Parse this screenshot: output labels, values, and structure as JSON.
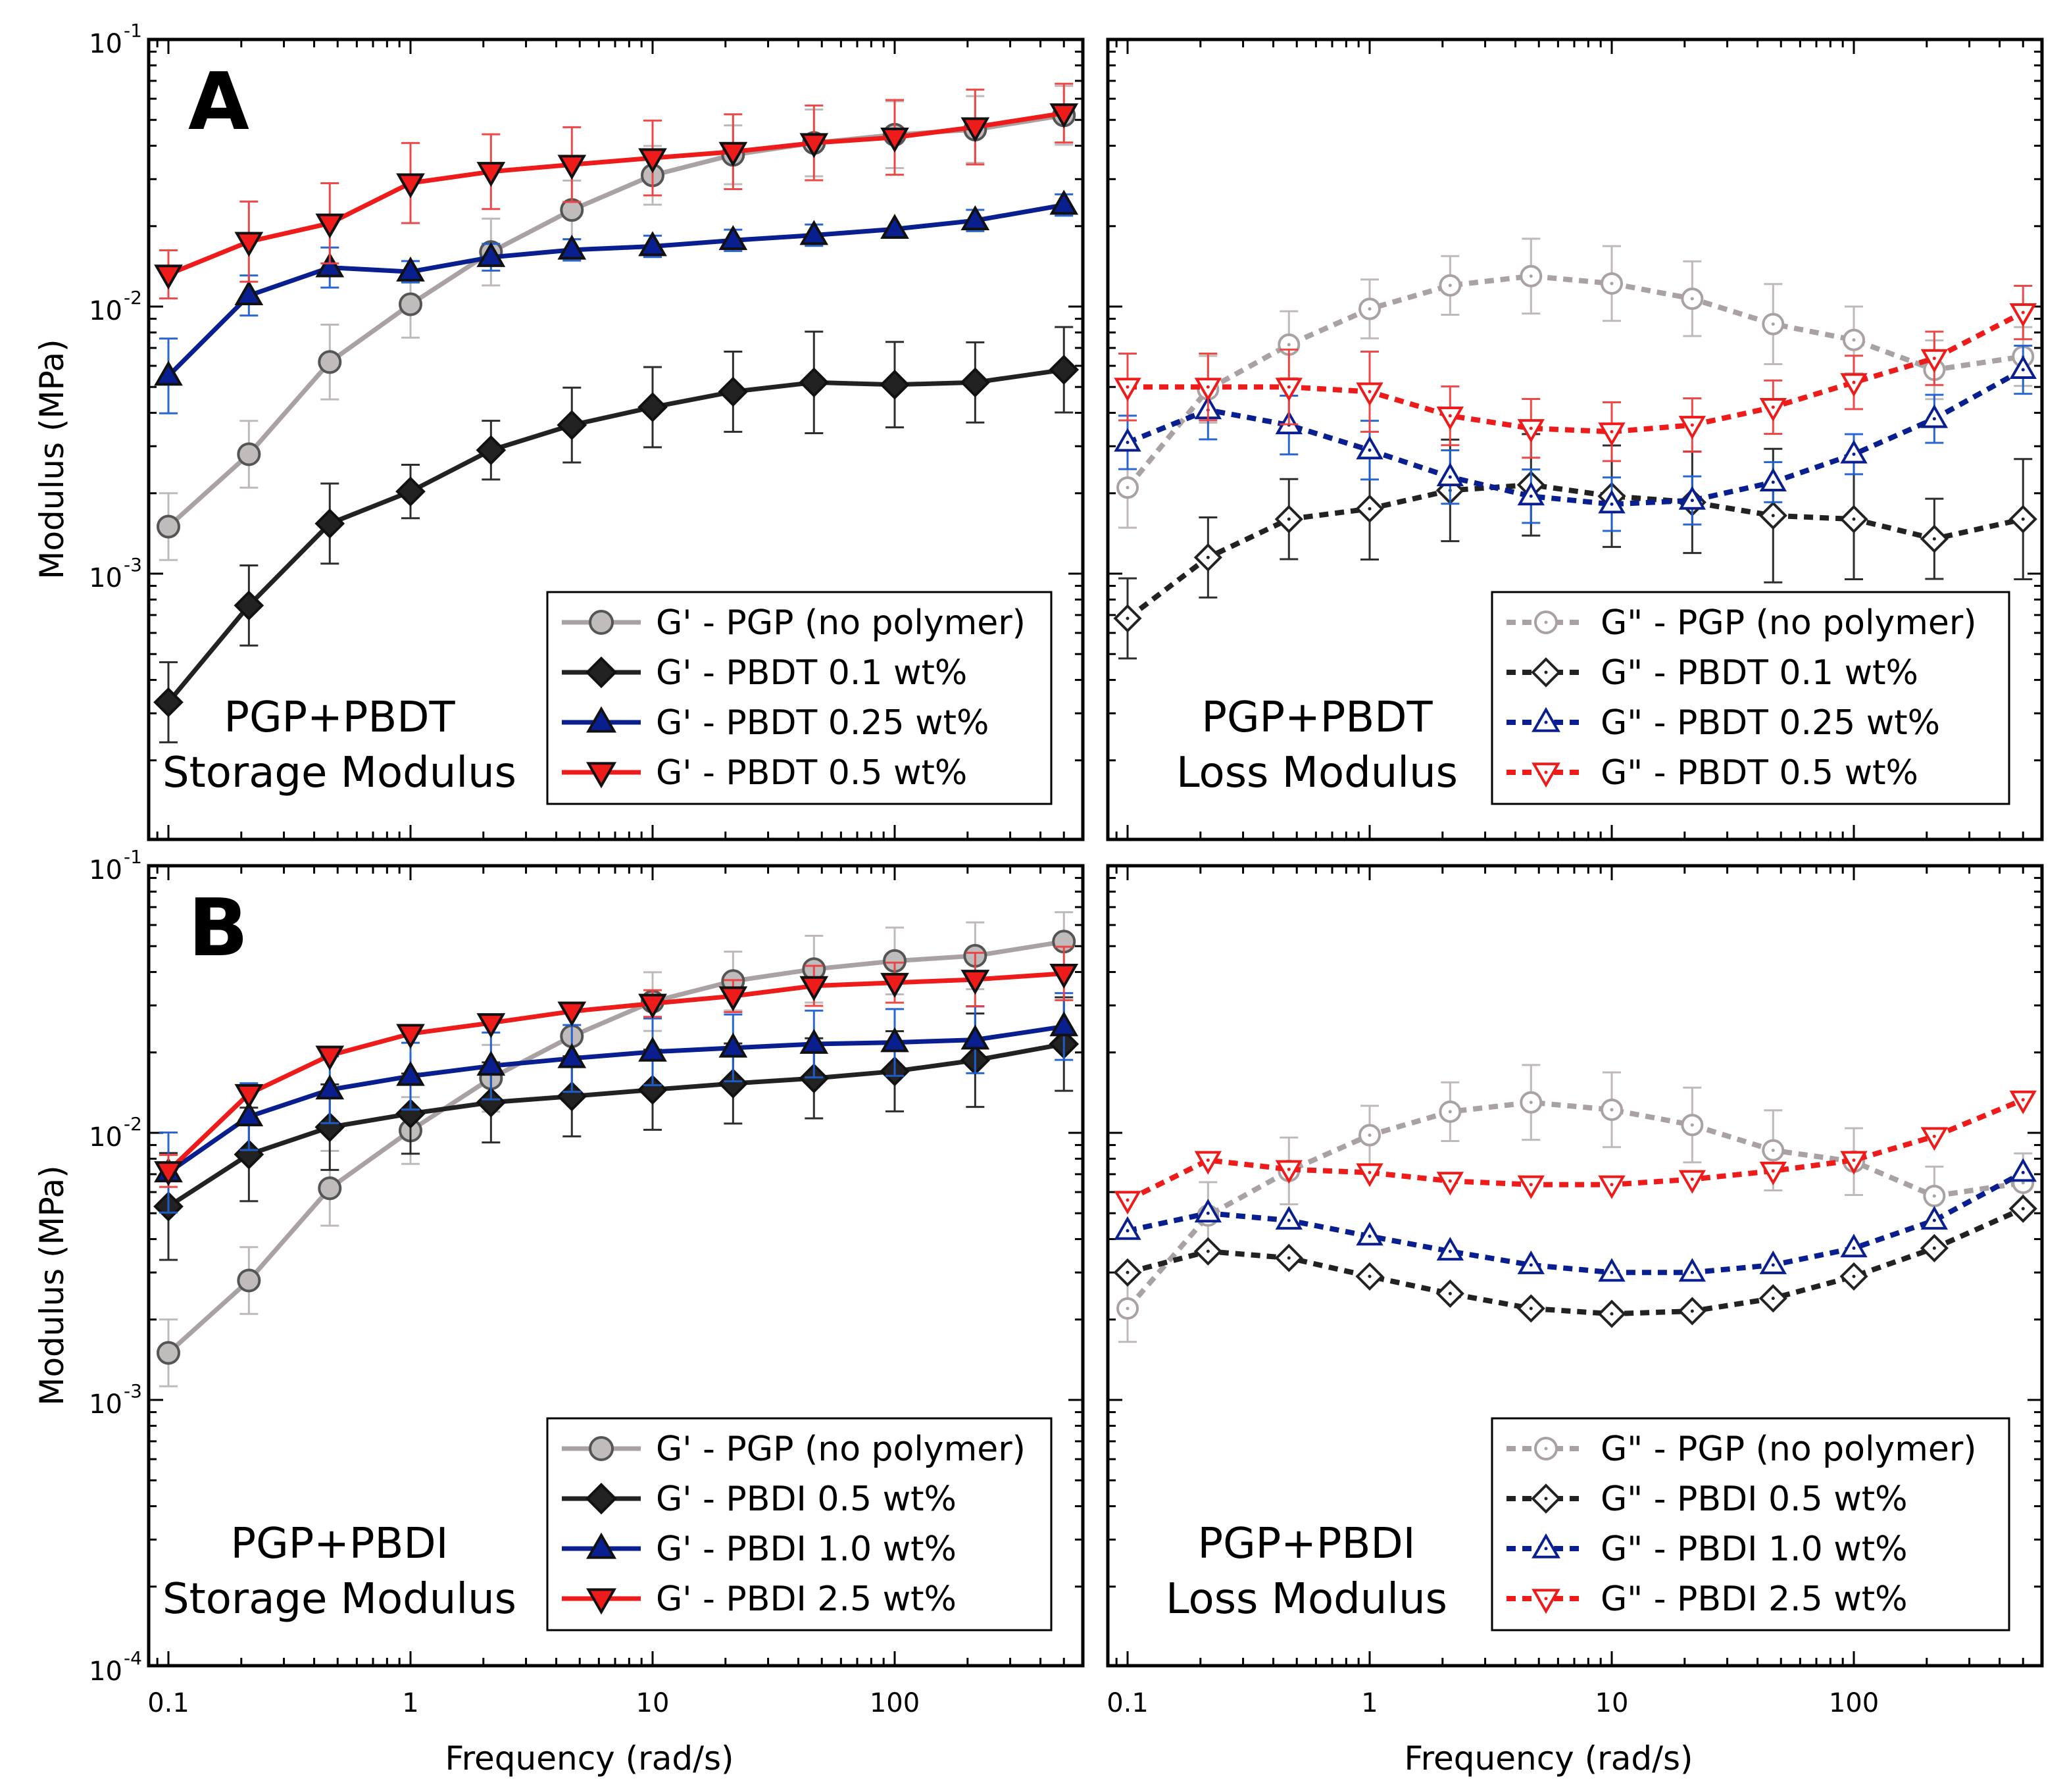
{
  "colors": {
    "pgp": "#aaa2a2",
    "pgp_fill": "#c0bcbc",
    "pgp_edge": "#555555",
    "low": "#222222",
    "mid": "#0a1f8f",
    "high": "#ee1b1b",
    "mid_err": "#1f5fd0",
    "high_err": "#ee4040",
    "frame": "#000000"
  },
  "figure": {
    "xlabel": "Frequency (rad/s)",
    "ylabel": "Modulus (MPa)",
    "x_ticks": [
      {
        "v": 0.1,
        "label": "0.1"
      },
      {
        "v": 1,
        "label": "1"
      },
      {
        "v": 10,
        "label": "10"
      },
      {
        "v": 100,
        "label": "100"
      }
    ],
    "y_decades_A": [
      {
        "v": 0.1,
        "base": "10",
        "exp": "-1"
      },
      {
        "v": 0.01,
        "base": "10",
        "exp": "-2"
      },
      {
        "v": 0.001,
        "base": "10",
        "exp": "-3"
      }
    ],
    "y_decades_B": [
      {
        "v": 0.1,
        "base": "10",
        "exp": "-1"
      },
      {
        "v": 0.01,
        "base": "10",
        "exp": "-2"
      },
      {
        "v": 0.001,
        "base": "10",
        "exp": "-3"
      },
      {
        "v": 0.0001,
        "base": "10",
        "exp": "-4"
      }
    ]
  },
  "chart_data": [
    {
      "id": "A-storage",
      "type": "line",
      "panel_label": "A",
      "title_lines": [
        "PGP+PBDT",
        "Storage Modulus"
      ],
      "xscale": "log",
      "yscale": "log",
      "xlim": [
        0.075,
        650
      ],
      "ylim": [
        0.0001,
        0.1
      ],
      "x": [
        0.1,
        0.215,
        0.464,
        1,
        2.15,
        4.64,
        10,
        21.5,
        46.4,
        100,
        215,
        500
      ],
      "series": [
        {
          "name": "G' - PGP (no polymer)",
          "color_key": "pgp",
          "marker": "circle",
          "dash": false,
          "filled": true,
          "values": [
            0.0015,
            0.0028,
            0.0062,
            0.0102,
            0.016,
            0.023,
            0.031,
            0.037,
            0.041,
            0.044,
            0.046,
            0.052
          ],
          "err": [
            0.25,
            0.25,
            0.28,
            0.25,
            0.25,
            0.22,
            0.22,
            0.22,
            0.25,
            0.25,
            0.25,
            0.22
          ]
        },
        {
          "name": "G' - PBDT 0.1 wt%",
          "color_key": "low",
          "marker": "diamond",
          "dash": false,
          "filled": true,
          "values": [
            0.00033,
            0.00076,
            0.00154,
            0.00203,
            0.0029,
            0.0036,
            0.0042,
            0.0048,
            0.0052,
            0.0051,
            0.0052,
            0.0058
          ],
          "err": [
            0.3,
            0.3,
            0.3,
            0.2,
            0.22,
            0.28,
            0.3,
            0.3,
            0.38,
            0.32,
            0.3,
            0.32
          ]
        },
        {
          "name": "G' - PBDT 0.25 wt%",
          "color_key": "mid",
          "marker": "triangle-up",
          "dash": false,
          "filled": true,
          "values": [
            0.0055,
            0.011,
            0.014,
            0.0135,
            0.0153,
            0.0163,
            0.0168,
            0.0177,
            0.0185,
            0.0195,
            0.021,
            0.024
          ],
          "err": [
            0.28,
            0.15,
            0.15,
            0.08,
            0.1,
            0.08,
            0.08,
            0.08,
            0.08,
            0.06,
            0.08,
            0.08
          ]
        },
        {
          "name": "G' - PBDT 0.5 wt%",
          "color_key": "high",
          "marker": "triangle-down",
          "dash": false,
          "filled": true,
          "values": [
            0.0132,
            0.0175,
            0.0205,
            0.029,
            0.032,
            0.034,
            0.036,
            0.038,
            0.041,
            0.043,
            0.047,
            0.053
          ],
          "err": [
            0.18,
            0.3,
            0.3,
            0.3,
            0.28,
            0.28,
            0.28,
            0.28,
            0.28,
            0.28,
            0.28,
            0.22
          ]
        }
      ],
      "legend_position": "bottom-right"
    },
    {
      "id": "A-loss",
      "type": "line",
      "title_lines": [
        "PGP+PBDT",
        "Loss Modulus"
      ],
      "xscale": "log",
      "yscale": "log",
      "xlim": [
        0.075,
        650
      ],
      "ylim": [
        0.0001,
        0.1
      ],
      "x": [
        0.1,
        0.215,
        0.464,
        1,
        2.15,
        4.64,
        10,
        21.5,
        46.4,
        100,
        215,
        500
      ],
      "series": [
        {
          "name": "G\" - PGP (no polymer)",
          "color_key": "pgp",
          "marker": "circle",
          "dash": true,
          "filled": false,
          "values": [
            0.0021,
            0.0049,
            0.0072,
            0.0098,
            0.012,
            0.013,
            0.0122,
            0.0107,
            0.0086,
            0.0075,
            0.0058,
            0.0065
          ],
          "err": [
            0.3,
            0.25,
            0.25,
            0.22,
            0.22,
            0.28,
            0.28,
            0.28,
            0.3,
            0.25,
            0.22,
            0.22
          ]
        },
        {
          "name": "G\" - PBDT 0.1 wt%",
          "color_key": "low",
          "marker": "diamond",
          "dash": true,
          "filled": false,
          "values": [
            0.00068,
            0.00115,
            0.0016,
            0.00175,
            0.00205,
            0.00215,
            0.00195,
            0.00185,
            0.00165,
            0.0016,
            0.00135,
            0.0016
          ],
          "err": [
            0.3,
            0.3,
            0.3,
            0.38,
            0.38,
            0.38,
            0.38,
            0.38,
            0.5,
            0.45,
            0.3,
            0.45
          ]
        },
        {
          "name": "G\" - PBDT 0.25 wt%",
          "color_key": "mid",
          "marker": "triangle-up",
          "dash": true,
          "filled": false,
          "values": [
            0.0031,
            0.0041,
            0.0036,
            0.0029,
            0.0023,
            0.00195,
            0.00182,
            0.00188,
            0.0022,
            0.0028,
            0.0038,
            0.0058
          ],
          "err": [
            0.2,
            0.22,
            0.22,
            0.22,
            0.2,
            0.2,
            0.2,
            0.18,
            0.15,
            0.15,
            0.18,
            0.18
          ]
        },
        {
          "name": "G\" - PBDT 0.5 wt%",
          "color_key": "high",
          "marker": "triangle-down",
          "dash": true,
          "filled": false,
          "values": [
            0.005,
            0.005,
            0.005,
            0.0048,
            0.0039,
            0.0035,
            0.0034,
            0.0036,
            0.0042,
            0.0052,
            0.0064,
            0.0095
          ],
          "err": [
            0.25,
            0.25,
            0.28,
            0.3,
            0.22,
            0.22,
            0.22,
            0.2,
            0.2,
            0.2,
            0.2,
            0.2
          ]
        }
      ],
      "legend_position": "bottom-right"
    },
    {
      "id": "B-storage",
      "type": "line",
      "panel_label": "B",
      "title_lines": [
        "PGP+PBDI",
        "Storage Modulus"
      ],
      "xscale": "log",
      "yscale": "log",
      "xlim": [
        0.075,
        650
      ],
      "ylim": [
        0.0001,
        0.1
      ],
      "x": [
        0.1,
        0.215,
        0.464,
        1,
        2.15,
        4.64,
        10,
        21.5,
        46.4,
        100,
        215,
        500
      ],
      "series": [
        {
          "name": "G' - PGP (no polymer)",
          "color_key": "pgp",
          "marker": "circle",
          "dash": false,
          "filled": true,
          "values": [
            0.0015,
            0.0028,
            0.0062,
            0.0102,
            0.016,
            0.023,
            0.031,
            0.037,
            0.041,
            0.044,
            0.046,
            0.052
          ],
          "err": [
            0.25,
            0.25,
            0.28,
            0.25,
            0.25,
            0.22,
            0.22,
            0.22,
            0.25,
            0.25,
            0.25,
            0.22
          ]
        },
        {
          "name": "G' - PBDI 0.5 wt%",
          "color_key": "low",
          "marker": "diamond",
          "dash": false,
          "filled": true,
          "values": [
            0.0053,
            0.0083,
            0.0105,
            0.0118,
            0.013,
            0.0137,
            0.0145,
            0.0153,
            0.016,
            0.017,
            0.0187,
            0.0215
          ],
          "err": [
            0.4,
            0.35,
            0.32,
            0.3,
            0.3,
            0.3,
            0.3,
            0.3,
            0.3,
            0.3,
            0.35,
            0.35
          ]
        },
        {
          "name": "G' - PBDI 1.0 wt%",
          "color_key": "mid",
          "marker": "triangle-up",
          "dash": false,
          "filled": true,
          "values": [
            0.0071,
            0.0115,
            0.0145,
            0.0163,
            0.0178,
            0.019,
            0.0201,
            0.0208,
            0.0215,
            0.0218,
            0.0223,
            0.025
          ],
          "err": [
            0.3,
            0.25,
            0.25,
            0.25,
            0.25,
            0.25,
            0.25,
            0.25,
            0.25,
            0.25,
            0.25,
            0.25
          ]
        },
        {
          "name": "G' - PBDI 2.5 wt%",
          "color_key": "high",
          "marker": "triangle-down",
          "dash": false,
          "filled": true,
          "values": [
            0.0072,
            0.014,
            0.0195,
            0.0235,
            0.0258,
            0.0285,
            0.0305,
            0.0325,
            0.0355,
            0.0365,
            0.0375,
            0.0395
          ],
          "err": [
            0.12,
            0.06,
            0.05,
            0.05,
            0.06,
            0.06,
            0.1,
            0.12,
            0.15,
            0.15,
            0.2,
            0.2
          ]
        }
      ],
      "legend_position": "bottom-right"
    },
    {
      "id": "B-loss",
      "type": "line",
      "title_lines": [
        "PGP+PBDI",
        "Loss Modulus"
      ],
      "xscale": "log",
      "yscale": "log",
      "xlim": [
        0.075,
        650
      ],
      "ylim": [
        0.0001,
        0.1
      ],
      "x": [
        0.1,
        0.215,
        0.464,
        1,
        2.15,
        4.64,
        10,
        21.5,
        46.4,
        100,
        215,
        500
      ],
      "series": [
        {
          "name": "G\" - PGP (no polymer)",
          "color_key": "pgp",
          "marker": "circle",
          "dash": true,
          "filled": false,
          "values": [
            0.0022,
            0.0049,
            0.0072,
            0.0098,
            0.012,
            0.013,
            0.0122,
            0.0107,
            0.0086,
            0.0078,
            0.0058,
            0.0065
          ],
          "err": [
            0.25,
            0.25,
            0.25,
            0.22,
            0.22,
            0.28,
            0.28,
            0.28,
            0.3,
            0.25,
            0.22,
            0.22
          ]
        },
        {
          "name": "G\" - PBDI 0.5 wt%",
          "color_key": "low",
          "marker": "diamond",
          "dash": true,
          "filled": false,
          "values": [
            0.003,
            0.0036,
            0.0034,
            0.0029,
            0.0025,
            0.0022,
            0.0021,
            0.00215,
            0.0024,
            0.0029,
            0.0037,
            0.0052
          ],
          "err": [
            0.05,
            0.05,
            0.05,
            0.05,
            0.05,
            0.05,
            0.05,
            0.05,
            0.05,
            0.05,
            0.05,
            0.05
          ]
        },
        {
          "name": "G\" - PBDI 1.0 wt%",
          "color_key": "mid",
          "marker": "triangle-up",
          "dash": true,
          "filled": false,
          "values": [
            0.0043,
            0.005,
            0.0047,
            0.0041,
            0.0036,
            0.0032,
            0.003,
            0.003,
            0.0032,
            0.0037,
            0.0047,
            0.0071
          ],
          "err": [
            0.05,
            0.05,
            0.05,
            0.05,
            0.05,
            0.05,
            0.05,
            0.05,
            0.05,
            0.05,
            0.05,
            0.05
          ]
        },
        {
          "name": "G\" - PBDI 2.5 wt%",
          "color_key": "high",
          "marker": "triangle-down",
          "dash": true,
          "filled": false,
          "values": [
            0.0056,
            0.0079,
            0.0073,
            0.0071,
            0.0066,
            0.0064,
            0.0064,
            0.0067,
            0.0072,
            0.0079,
            0.0097,
            0.0133
          ],
          "err": [
            0.05,
            0.05,
            0.05,
            0.05,
            0.05,
            0.05,
            0.05,
            0.05,
            0.05,
            0.05,
            0.05,
            0.05
          ]
        }
      ],
      "legend_position": "bottom-right"
    }
  ]
}
